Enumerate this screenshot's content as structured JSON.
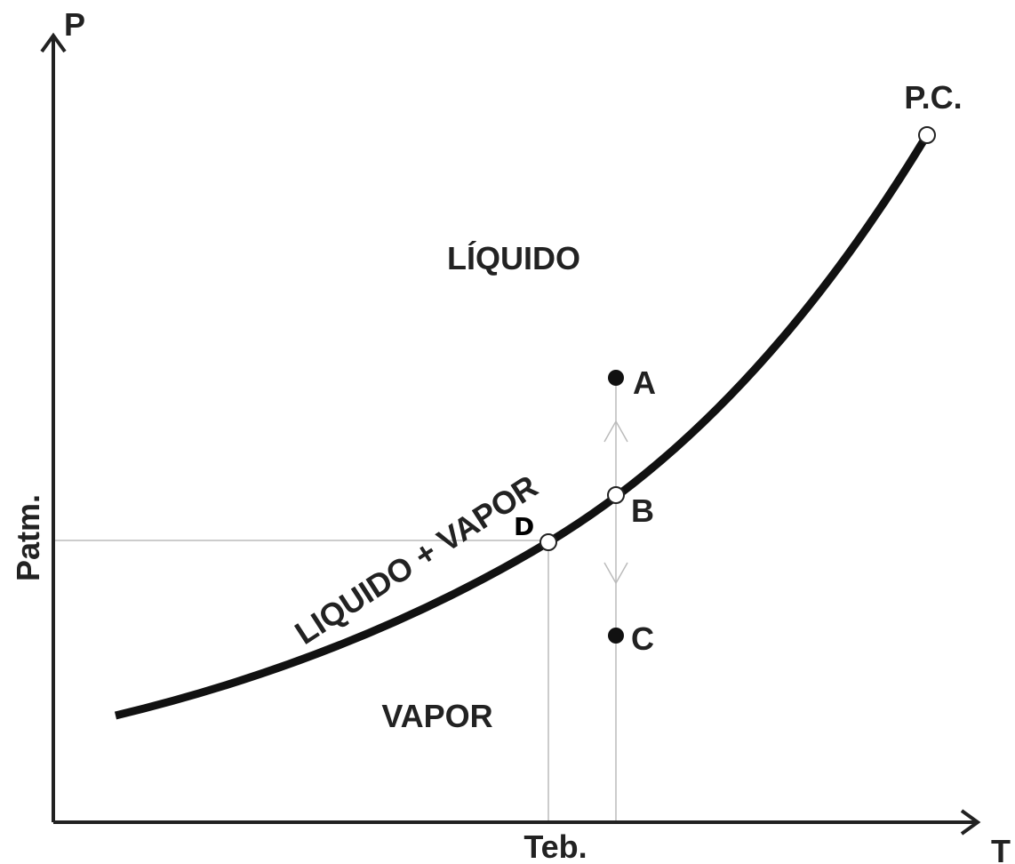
{
  "axes": {
    "y_label": "P",
    "x_label": "T",
    "y_marker": "Patm.",
    "x_marker": "Teb."
  },
  "regions": {
    "liquid": "LÍQUIDO",
    "curve": "LIQUIDO + VAPOR",
    "vapor": "VAPOR"
  },
  "points": {
    "critical": "P.C.",
    "a": "A",
    "b": "B",
    "c": "C",
    "d": "D"
  }
}
